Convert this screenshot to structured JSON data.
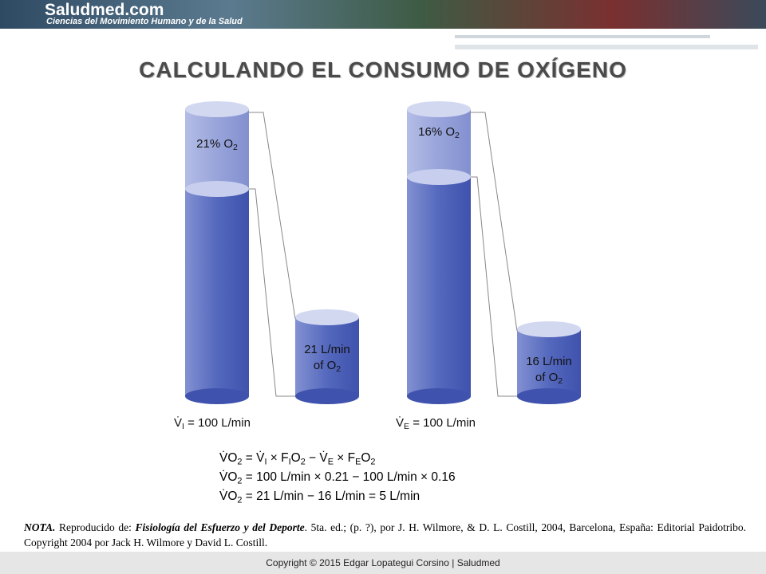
{
  "header": {
    "logo": "Saludmed.com",
    "tagline": "Ciencias del Movimiento Humano y de la Salud"
  },
  "title": "CALCULANDO EL CONSUMO DE OXÍGENO",
  "cylinders": [
    {
      "fill_label": [
        {
          "t": "21% O"
        },
        {
          "t": "2",
          "sub": true
        }
      ],
      "out_label": [
        {
          "t": "21 L/min"
        }
      ],
      "out_label2": [
        {
          "t": "of O"
        },
        {
          "t": "2",
          "sub": true
        }
      ],
      "flow": [
        {
          "t": "V̇"
        },
        {
          "t": "I",
          "sub": true
        },
        {
          "t": " = 100 L/min"
        }
      ]
    },
    {
      "fill_label": [
        {
          "t": "16% O"
        },
        {
          "t": "2",
          "sub": true
        }
      ],
      "out_label": [
        {
          "t": "16 L/min"
        }
      ],
      "out_label2": [
        {
          "t": "of O"
        },
        {
          "t": "2",
          "sub": true
        }
      ],
      "flow": [
        {
          "t": "V̇"
        },
        {
          "t": "E",
          "sub": true
        },
        {
          "t": " = 100 L/min"
        }
      ]
    }
  ],
  "equations": [
    [
      {
        "t": "V̇O"
      },
      {
        "t": "2",
        "sub": true
      },
      {
        "t": " = V̇"
      },
      {
        "t": "I",
        "sub": true
      },
      {
        "t": " × F"
      },
      {
        "t": "I",
        "sub": true
      },
      {
        "t": "O"
      },
      {
        "t": "2",
        "sub": true
      },
      {
        "t": " − V̇"
      },
      {
        "t": "E",
        "sub": true
      },
      {
        "t": " × F"
      },
      {
        "t": "E",
        "sub": true
      },
      {
        "t": "O"
      },
      {
        "t": "2",
        "sub": true
      }
    ],
    [
      {
        "t": "V̇O"
      },
      {
        "t": "2",
        "sub": true
      },
      {
        "t": " = 100 L/min × 0.21 − 100 L/min × 0.16"
      }
    ],
    [
      {
        "t": "V̇O"
      },
      {
        "t": "2",
        "sub": true
      },
      {
        "t": " = 21 L/min − 16 L/min = 5 L/min"
      }
    ]
  ],
  "note": [
    {
      "t": "NOTA.",
      "em": true
    },
    {
      "t": " Reproducido de: "
    },
    {
      "t": "Fisiología del Esfuerzo y del Deporte",
      "em": true
    },
    {
      "t": ". 5ta. ed.; (p. ?), por J. H. Wilmore, & D. L. Costill, 2004, Barcelona, España: Editorial Paidotribo. Copyright 2004 por Jack H. Wilmore y David L. Costill."
    }
  ],
  "footer": "Copyright © 2015 Edgar Lopategui Corsino | Saludmed"
}
